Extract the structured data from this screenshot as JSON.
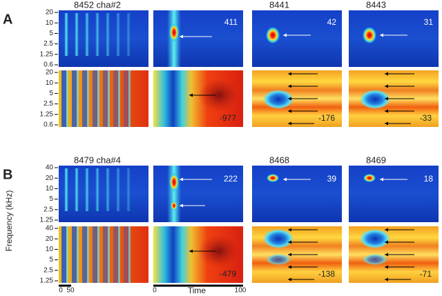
{
  "rows": [
    {
      "label": "A",
      "yticks_top": [
        "20",
        "10",
        "5",
        "2.5",
        "1.25",
        "0.6"
      ],
      "yticks_bottom": [
        "20",
        "10",
        "5",
        "2.5",
        "1.25",
        "0.6"
      ],
      "columns": [
        {
          "title": "8452 cha#2"
        },
        {
          "top": "411",
          "bottom": "-977"
        },
        {
          "title": "8441",
          "top": "42",
          "bottom": "-176"
        },
        {
          "title": "8443",
          "top": "31",
          "bottom": "-33"
        }
      ]
    },
    {
      "label": "B",
      "yticks_top": [
        "40",
        "20",
        "10",
        "5",
        "2.5",
        "1.25"
      ],
      "yticks_bottom": [
        "40",
        "20",
        "10",
        "5",
        "2.5",
        "1.25"
      ],
      "columns": [
        {
          "title": "8479 cha#4"
        },
        {
          "top": "222",
          "bottom": "-479"
        },
        {
          "title": "8468",
          "top": "39",
          "bottom": "-138"
        },
        {
          "title": "8469",
          "top": "18",
          "bottom": "-71"
        }
      ]
    }
  ],
  "y_axis_label": "Frequency (kHz)",
  "x_axis_label": "Time",
  "x_ticks_first": [
    "0",
    "50"
  ],
  "x_ticks_second": [
    "0",
    "100"
  ]
}
